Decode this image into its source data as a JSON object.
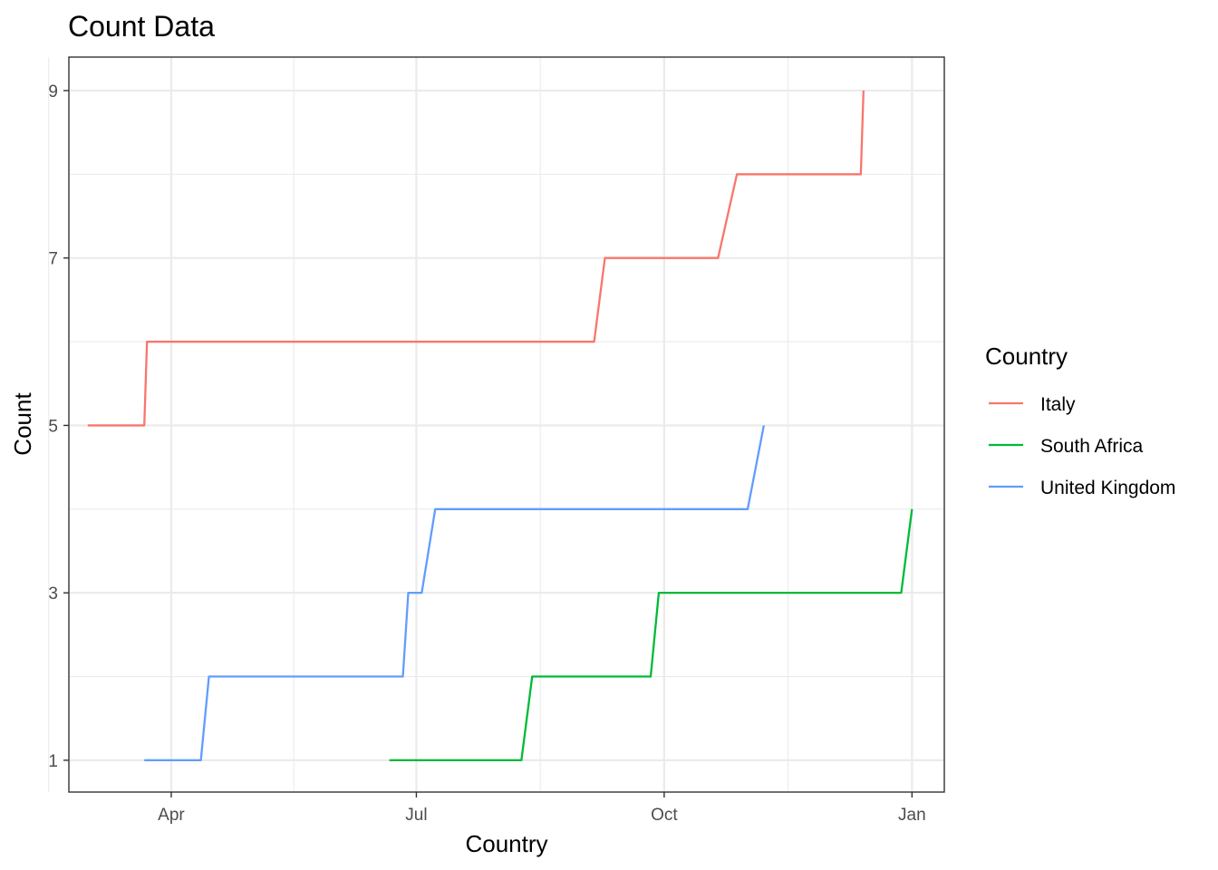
{
  "chart_data": {
    "type": "line",
    "title": "Count Data",
    "xlabel": "Country",
    "ylabel": "Count",
    "x_axis_type": "date",
    "xlim": [
      "2020-02-23",
      "2021-01-13"
    ],
    "ylim": [
      0.62,
      9.4
    ],
    "x_ticks": [
      {
        "date": "2020-04-01",
        "label": "Apr"
      },
      {
        "date": "2020-07-01",
        "label": "Jul"
      },
      {
        "date": "2020-10-01",
        "label": "Oct"
      },
      {
        "date": "2021-01-01",
        "label": "Jan"
      }
    ],
    "y_ticks": [
      1,
      3,
      5,
      7,
      9
    ],
    "grid": true,
    "legend": {
      "title": "Country",
      "position": "right"
    },
    "series": [
      {
        "name": "Italy",
        "color": "#F8766D",
        "points": [
          {
            "x": "2020-03-01",
            "y": 5
          },
          {
            "x": "2020-03-22",
            "y": 5
          },
          {
            "x": "2020-03-23",
            "y": 6
          },
          {
            "x": "2020-09-05",
            "y": 6
          },
          {
            "x": "2020-09-09",
            "y": 7
          },
          {
            "x": "2020-10-21",
            "y": 7
          },
          {
            "x": "2020-10-28",
            "y": 8
          },
          {
            "x": "2020-12-13",
            "y": 8
          },
          {
            "x": "2020-12-14",
            "y": 9
          }
        ]
      },
      {
        "name": "South Africa",
        "color": "#00BA38",
        "points": [
          {
            "x": "2020-06-21",
            "y": 1
          },
          {
            "x": "2020-08-09",
            "y": 1
          },
          {
            "x": "2020-08-13",
            "y": 2
          },
          {
            "x": "2020-09-26",
            "y": 2
          },
          {
            "x": "2020-09-29",
            "y": 3
          },
          {
            "x": "2020-12-28",
            "y": 3
          },
          {
            "x": "2021-01-01",
            "y": 4
          }
        ]
      },
      {
        "name": "United Kingdom",
        "color": "#619CFF",
        "points": [
          {
            "x": "2020-03-22",
            "y": 1
          },
          {
            "x": "2020-04-12",
            "y": 1
          },
          {
            "x": "2020-04-15",
            "y": 2
          },
          {
            "x": "2020-06-26",
            "y": 2
          },
          {
            "x": "2020-06-28",
            "y": 3
          },
          {
            "x": "2020-07-03",
            "y": 3
          },
          {
            "x": "2020-07-08",
            "y": 4
          },
          {
            "x": "2020-11-01",
            "y": 4
          },
          {
            "x": "2020-11-07",
            "y": 5
          }
        ]
      }
    ]
  }
}
